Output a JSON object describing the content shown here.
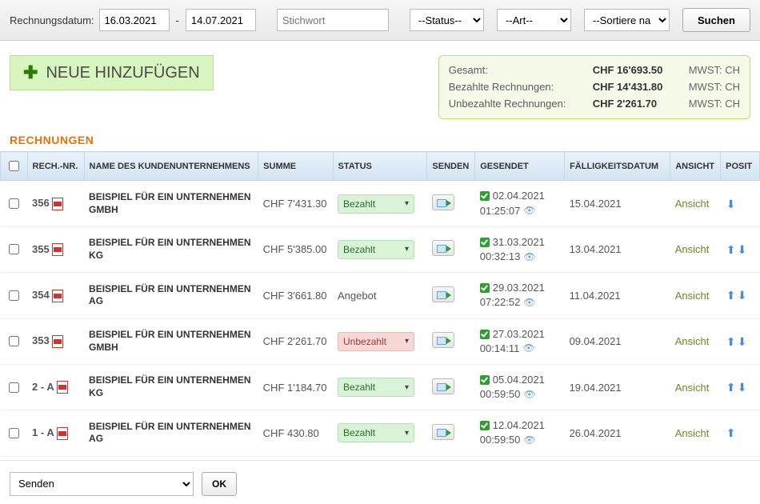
{
  "filter": {
    "date_label": "Rechnungsdatum:",
    "date_from": "16.03.2021",
    "date_to": "14.07.2021",
    "keyword_placeholder": "Stichwort",
    "status_placeholder": "--Status--",
    "art_placeholder": "--Art--",
    "sort_placeholder": "--Sortiere na",
    "search_label": "Suchen"
  },
  "add_button": {
    "label": "NEUE HINZUFÜGEN"
  },
  "summary": {
    "total_label": "Gesamt:",
    "total_amount": "CHF 16'693.50",
    "total_vat": "MWST: CH",
    "paid_label": "Bezahlte Rechnungen:",
    "paid_amount": "CHF 14'431.80",
    "paid_vat": "MWST: CH",
    "unpaid_label": "Unbezahlte Rechnungen:",
    "unpaid_amount": "CHF 2'261.70",
    "unpaid_vat": "MWST: CH"
  },
  "section_title": "RECHNUNGEN",
  "columns": {
    "nr": "RECH.-NR.",
    "company": "NAME DES KUNDENUNTERNEHMENS",
    "sum": "SUMME",
    "status": "STATUS",
    "send": "SENDEN",
    "sent": "GESENDET",
    "due": "FÄLLIGKEITSDATUM",
    "view": "ANSICHT",
    "posit": "POSIT"
  },
  "status_labels": {
    "paid": "Bezahlt",
    "unpaid": "Unbezahlt",
    "offer": "Angebot"
  },
  "view_label": "Ansicht",
  "rows": [
    {
      "nr": "356",
      "company": "BEISPIEL FÜR EIN UNTERNEHMEN GMBH",
      "amount": "CHF 7'431.30",
      "status": "paid",
      "status_style": "pill",
      "sent_date": "02.04.2021",
      "sent_time": "01:25:07",
      "due": "15.04.2021",
      "overdue": false,
      "arrows": "down"
    },
    {
      "nr": "355",
      "company": "BEISPIEL FÜR EIN UNTERNEHMEN KG",
      "amount": "CHF 5'385.00",
      "status": "paid",
      "status_style": "pill",
      "sent_date": "31.03.2021",
      "sent_time": "00:32:13",
      "due": "13.04.2021",
      "overdue": false,
      "arrows": "both"
    },
    {
      "nr": "354",
      "company": "BEISPIEL FÜR EIN UNTERNEHMEN AG",
      "amount": "CHF 3'661.80",
      "status": "offer",
      "status_style": "text",
      "sent_date": "29.03.2021",
      "sent_time": "07:22:52",
      "due": "11.04.2021",
      "overdue": false,
      "arrows": "both"
    },
    {
      "nr": "353",
      "company": "BEISPIEL FÜR EIN UNTERNEHMEN GMBH",
      "amount": "CHF 2'261.70",
      "status": "unpaid",
      "status_style": "pill",
      "sent_date": "27.03.2021",
      "sent_time": "00:14:11",
      "due": "09.04.2021",
      "overdue": true,
      "arrows": "both"
    },
    {
      "nr": "2 - A",
      "company": "BEISPIEL FÜR EIN UNTERNEHMEN KG",
      "amount": "CHF 1'184.70",
      "status": "paid",
      "status_style": "pill",
      "sent_date": "05.04.2021",
      "sent_time": "00:59:50",
      "due": "19.04.2021",
      "overdue": false,
      "arrows": "both"
    },
    {
      "nr": "1 - A",
      "company": "BEISPIEL FÜR EIN UNTERNEHMEN AG",
      "amount": "CHF 430.80",
      "status": "paid",
      "status_style": "pill",
      "sent_date": "12.04.2021",
      "sent_time": "00:59:50",
      "due": "26.04.2021",
      "overdue": false,
      "arrows": "up"
    }
  ],
  "bulk": {
    "action_placeholder": "Senden",
    "ok_label": "OK"
  },
  "colors": {
    "accent_orange": "#e8710a",
    "header_grad_top": "#e8f2fb",
    "header_grad_bot": "#d2e4f2",
    "paid_bg": "#d9f3d9",
    "unpaid_bg": "#f8d7d7",
    "overdue_text": "#d9302c",
    "view_link": "#6a8a2a",
    "add_bg": "#d9f5bf",
    "summary_bg": "#f5fbe8"
  }
}
